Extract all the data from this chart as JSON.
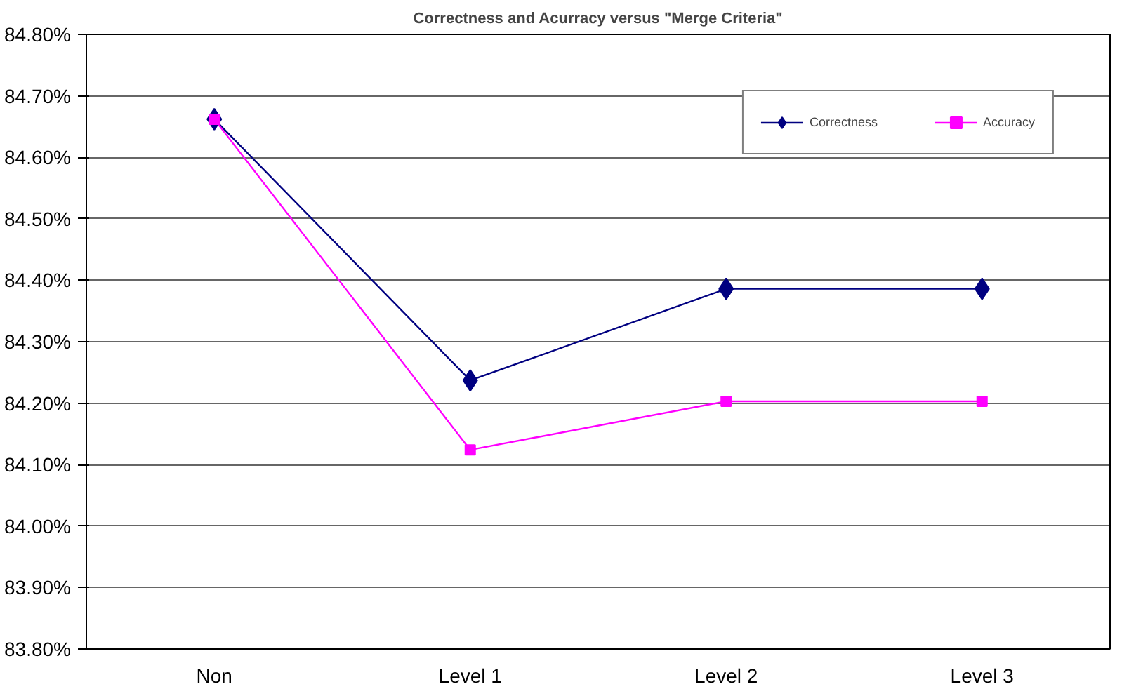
{
  "chart_data": {
    "type": "line",
    "title": "Correctness and Acurracy versus \"Merge Criteria\"",
    "categories": [
      "Non",
      "Level 1",
      "Level 2",
      "Level 3"
    ],
    "series": [
      {
        "name": "Correctness",
        "color": "#000080",
        "marker": "diamond",
        "values": [
          84.662,
          84.237,
          84.386,
          84.386
        ]
      },
      {
        "name": "Accuracy",
        "color": "#ff00ff",
        "marker": "square",
        "values": [
          84.662,
          84.124,
          84.203,
          84.203
        ]
      }
    ],
    "ylim": [
      83.8,
      84.8
    ],
    "yticks": [
      {
        "value": 83.8,
        "label": "83.80%"
      },
      {
        "value": 83.9,
        "label": "83.90%"
      },
      {
        "value": 84.0,
        "label": "84.00%"
      },
      {
        "value": 84.1,
        "label": "84.10%"
      },
      {
        "value": 84.2,
        "label": "84.20%"
      },
      {
        "value": 84.3,
        "label": "84.30%"
      },
      {
        "value": 84.4,
        "label": "84.40%"
      },
      {
        "value": 84.5,
        "label": "84.50%"
      },
      {
        "value": 84.6,
        "label": "84.60%"
      },
      {
        "value": 84.7,
        "label": "84.70%"
      },
      {
        "value": 84.8,
        "label": "84.80%"
      }
    ],
    "grid": "y",
    "legend": "top right"
  }
}
